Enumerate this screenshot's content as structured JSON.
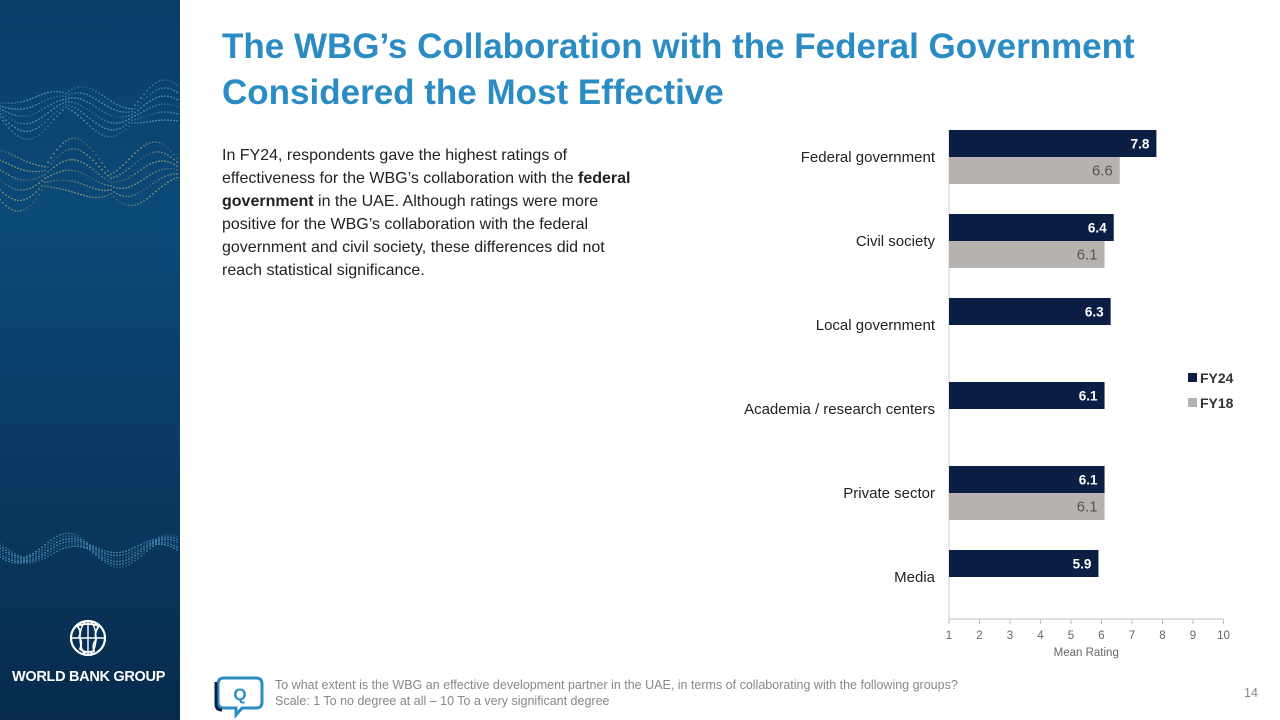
{
  "slide": {
    "title": "The WBG’s Collaboration with the Federal Government Considered the Most Effective",
    "body": {
      "before": "In FY24, respondents gave the highest ratings of effectiveness for the WBG’s collaboration with the ",
      "bold": "federal government",
      "after": " in the UAE. Although ratings were more positive for the WBG’s collaboration with the federal government and civil society, these differences did not reach statistical significance."
    },
    "footnote": {
      "question": "To what extent is the WBG an effective development partner in the UAE, in terms of collaborating with the following groups?",
      "scale": "Scale: 1 To no degree at all – 10 To a very significant degree"
    },
    "page_number": "14",
    "logo_text": "WORLD BANK GROUP",
    "icons": {
      "logo": "globe-icon",
      "footnote": "question-chat-icon"
    }
  },
  "colors": {
    "fy24": "#0b1f45",
    "fy18": "#b5b2b0",
    "title": "#2b8cc4",
    "sidebar": "#0a3d68"
  },
  "chart_data": {
    "type": "bar",
    "orientation": "horizontal",
    "categories": [
      "Federal government",
      "Civil society",
      "Local government",
      "Academia / research centers",
      "Private sector",
      "Media"
    ],
    "series": [
      {
        "name": "FY24",
        "values": [
          7.8,
          6.4,
          6.3,
          6.1,
          6.1,
          5.9
        ]
      },
      {
        "name": "FY18",
        "values": [
          6.6,
          6.1,
          null,
          null,
          6.1,
          null
        ]
      }
    ],
    "xlabel": "Mean Rating",
    "xlim": [
      1,
      10
    ],
    "xticks": [
      1,
      2,
      3,
      4,
      5,
      6,
      7,
      8,
      9,
      10
    ],
    "legend_position": "right",
    "grid": false
  }
}
